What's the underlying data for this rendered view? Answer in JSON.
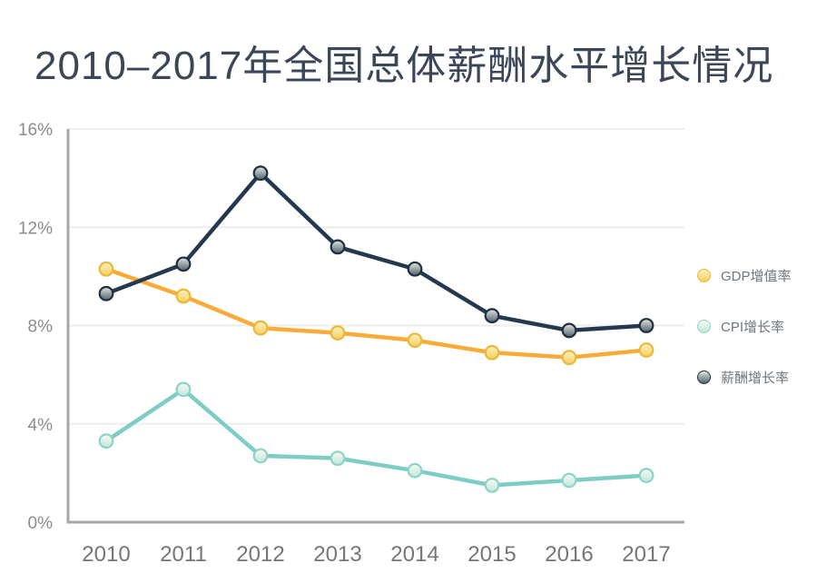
{
  "title": "2010–2017年全国总体薪酬水平增长情况",
  "chart_data": {
    "type": "line",
    "title": "2010–2017年全国总体薪酬水平增长情况",
    "categories": [
      "2010",
      "2011",
      "2012",
      "2013",
      "2014",
      "2015",
      "2016",
      "2017"
    ],
    "series": [
      {
        "name": "GDP增值率",
        "values": [
          10.3,
          9.2,
          7.9,
          7.7,
          7.4,
          6.9,
          6.7,
          7.0
        ],
        "line_color": "#F9AB38",
        "marker_border": "#E9B93B",
        "marker_top": "#FDF2C2",
        "marker_bottom": "#F7CD5C"
      },
      {
        "name": "CPI增长率",
        "values": [
          3.3,
          5.4,
          2.7,
          2.6,
          2.1,
          1.5,
          1.7,
          1.9
        ],
        "line_color": "#7ECDC5",
        "marker_border": "#8ED3CA",
        "marker_top": "#F7FBF1",
        "marker_bottom": "#C2E6D9"
      },
      {
        "name": "薪酬增长率",
        "values": [
          9.3,
          10.5,
          14.2,
          11.2,
          10.3,
          8.4,
          7.8,
          8.0
        ],
        "line_color": "#24384E",
        "marker_border": "#1E3040",
        "marker_top": "#E6E6DD",
        "marker_bottom": "#50626F"
      }
    ],
    "y_ticks": [
      "0%",
      "4%",
      "8%",
      "12%",
      "16%"
    ],
    "y_tick_values": [
      0,
      4,
      8,
      12,
      16
    ],
    "ylim": [
      0,
      16
    ],
    "xlabel": "",
    "ylabel": "",
    "grid": true,
    "legend_position": "right"
  },
  "colors": {
    "background": "#FFFFFF",
    "title_text": "#3B4758",
    "axis_line": "#A7A7A7",
    "gridline": "#EDEDED",
    "y_tick_label": "#8C8C8C",
    "x_tick_label": "#767676",
    "legend_text": "#6E767E"
  }
}
